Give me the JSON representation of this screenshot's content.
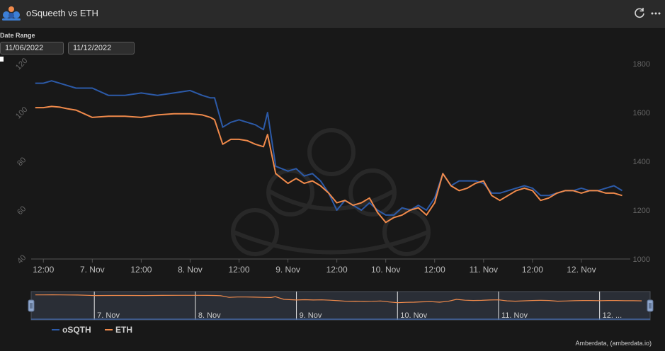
{
  "header": {
    "title": "oSqueeth vs ETH",
    "refresh_icon": "refresh-icon",
    "more_icon": "more-icon"
  },
  "date_range": {
    "label": "Date Range",
    "start": "11/06/2022",
    "end": "11/12/2022"
  },
  "footer": {
    "credit": "Amberdata, (amberdata.io)"
  },
  "colors": {
    "osqth": "#2c5aa8",
    "eth": "#f08a4b",
    "background": "#181818"
  },
  "chart_data": {
    "type": "line",
    "title": "",
    "y_left": {
      "min": 40,
      "max": 120,
      "ticks": [
        40,
        60,
        80,
        100,
        120
      ]
    },
    "y_right": {
      "min": 1000,
      "max": 1800,
      "ticks": [
        1000,
        1200,
        1400,
        1600,
        1800
      ]
    },
    "x_range": [
      "2022-11-06T09:00",
      "2022-11-12T12:00"
    ],
    "x_ticks": [
      {
        "t": "2022-11-06T12:00",
        "label": "12:00"
      },
      {
        "t": "2022-11-07T00:00",
        "label": "7. Nov"
      },
      {
        "t": "2022-11-07T12:00",
        "label": "12:00"
      },
      {
        "t": "2022-11-08T00:00",
        "label": "8. Nov"
      },
      {
        "t": "2022-11-08T12:00",
        "label": "12:00"
      },
      {
        "t": "2022-11-09T00:00",
        "label": "9. Nov"
      },
      {
        "t": "2022-11-09T12:00",
        "label": "12:00"
      },
      {
        "t": "2022-11-10T00:00",
        "label": "10. Nov"
      },
      {
        "t": "2022-11-10T12:00",
        "label": "12:00"
      },
      {
        "t": "2022-11-11T00:00",
        "label": "11. Nov"
      },
      {
        "t": "2022-11-11T12:00",
        "label": "12:00"
      },
      {
        "t": "2022-11-12T00:00",
        "label": "12. Nov"
      }
    ],
    "navigator_ticks": [
      {
        "t": "2022-11-07T00:00",
        "label": "7. Nov"
      },
      {
        "t": "2022-11-08T00:00",
        "label": "8. Nov"
      },
      {
        "t": "2022-11-09T00:00",
        "label": "9. Nov"
      },
      {
        "t": "2022-11-10T00:00",
        "label": "10. Nov"
      },
      {
        "t": "2022-11-11T00:00",
        "label": "11. Nov"
      },
      {
        "t": "2022-11-12T00:00",
        "label": "12. ..."
      }
    ],
    "legend": {
      "position": "bottom-left"
    },
    "series": [
      {
        "name": "oSQTH",
        "axis": "left",
        "x": [
          "2022-11-06T10:00",
          "2022-11-06T12:00",
          "2022-11-06T14:00",
          "2022-11-06T16:00",
          "2022-11-06T18:00",
          "2022-11-06T20:00",
          "2022-11-07T00:00",
          "2022-11-07T04:00",
          "2022-11-07T08:00",
          "2022-11-07T12:00",
          "2022-11-07T16:00",
          "2022-11-07T20:00",
          "2022-11-08T00:00",
          "2022-11-08T03:00",
          "2022-11-08T05:00",
          "2022-11-08T06:00",
          "2022-11-08T08:00",
          "2022-11-08T10:00",
          "2022-11-08T12:00",
          "2022-11-08T14:00",
          "2022-11-08T16:00",
          "2022-11-08T18:00",
          "2022-11-08T19:00",
          "2022-11-08T21:00",
          "2022-11-09T00:00",
          "2022-11-09T02:00",
          "2022-11-09T04:00",
          "2022-11-09T06:00",
          "2022-11-09T08:00",
          "2022-11-09T10:00",
          "2022-11-09T12:00",
          "2022-11-09T14:00",
          "2022-11-09T16:00",
          "2022-11-09T18:00",
          "2022-11-09T20:00",
          "2022-11-09T22:00",
          "2022-11-10T00:00",
          "2022-11-10T02:00",
          "2022-11-10T04:00",
          "2022-11-10T06:00",
          "2022-11-10T08:00",
          "2022-11-10T10:00",
          "2022-11-10T12:00",
          "2022-11-10T14:00",
          "2022-11-10T16:00",
          "2022-11-10T18:00",
          "2022-11-10T20:00",
          "2022-11-10T22:00",
          "2022-11-11T00:00",
          "2022-11-11T02:00",
          "2022-11-11T04:00",
          "2022-11-11T06:00",
          "2022-11-11T08:00",
          "2022-11-11T10:00",
          "2022-11-11T12:00",
          "2022-11-11T14:00",
          "2022-11-11T16:00",
          "2022-11-11T18:00",
          "2022-11-11T20:00",
          "2022-11-11T22:00",
          "2022-11-12T00:00",
          "2022-11-12T02:00",
          "2022-11-12T04:00",
          "2022-11-12T06:00",
          "2022-11-12T08:00",
          "2022-11-12T10:00"
        ],
        "values": [
          112,
          112,
          113,
          112,
          111,
          110,
          110,
          107,
          107,
          108,
          107,
          108,
          109,
          107,
          106,
          106,
          94,
          96,
          97,
          96,
          95,
          93,
          100,
          78,
          76,
          77,
          74,
          75,
          72,
          67,
          60,
          64,
          62,
          60,
          63,
          60,
          58,
          58,
          61,
          60,
          62,
          60,
          65,
          75,
          70,
          72,
          72,
          72,
          71,
          67,
          67,
          68,
          69,
          70,
          69,
          66,
          66,
          67,
          68,
          68,
          69,
          68,
          68,
          69,
          70,
          68
        ]
      },
      {
        "name": "ETH",
        "axis": "right",
        "x": [
          "2022-11-06T10:00",
          "2022-11-06T12:00",
          "2022-11-06T14:00",
          "2022-11-06T16:00",
          "2022-11-06T18:00",
          "2022-11-06T20:00",
          "2022-11-07T00:00",
          "2022-11-07T04:00",
          "2022-11-07T08:00",
          "2022-11-07T12:00",
          "2022-11-07T16:00",
          "2022-11-07T20:00",
          "2022-11-08T00:00",
          "2022-11-08T03:00",
          "2022-11-08T05:00",
          "2022-11-08T06:00",
          "2022-11-08T08:00",
          "2022-11-08T10:00",
          "2022-11-08T12:00",
          "2022-11-08T14:00",
          "2022-11-08T16:00",
          "2022-11-08T18:00",
          "2022-11-08T19:00",
          "2022-11-08T21:00",
          "2022-11-09T00:00",
          "2022-11-09T02:00",
          "2022-11-09T04:00",
          "2022-11-09T06:00",
          "2022-11-09T08:00",
          "2022-11-09T10:00",
          "2022-11-09T12:00",
          "2022-11-09T14:00",
          "2022-11-09T16:00",
          "2022-11-09T18:00",
          "2022-11-09T20:00",
          "2022-11-09T22:00",
          "2022-11-10T00:00",
          "2022-11-10T02:00",
          "2022-11-10T04:00",
          "2022-11-10T06:00",
          "2022-11-10T08:00",
          "2022-11-10T10:00",
          "2022-11-10T12:00",
          "2022-11-10T14:00",
          "2022-11-10T16:00",
          "2022-11-10T18:00",
          "2022-11-10T20:00",
          "2022-11-10T22:00",
          "2022-11-11T00:00",
          "2022-11-11T02:00",
          "2022-11-11T04:00",
          "2022-11-11T06:00",
          "2022-11-11T08:00",
          "2022-11-11T10:00",
          "2022-11-11T12:00",
          "2022-11-11T14:00",
          "2022-11-11T16:00",
          "2022-11-11T18:00",
          "2022-11-11T20:00",
          "2022-11-11T22:00",
          "2022-11-12T00:00",
          "2022-11-12T02:00",
          "2022-11-12T04:00",
          "2022-11-12T06:00",
          "2022-11-12T08:00",
          "2022-11-12T10:00"
        ],
        "values": [
          1620,
          1620,
          1625,
          1622,
          1615,
          1610,
          1580,
          1585,
          1585,
          1580,
          1590,
          1595,
          1595,
          1590,
          1580,
          1570,
          1470,
          1490,
          1490,
          1485,
          1470,
          1460,
          1510,
          1350,
          1310,
          1330,
          1310,
          1320,
          1300,
          1270,
          1230,
          1240,
          1220,
          1230,
          1250,
          1190,
          1150,
          1170,
          1180,
          1200,
          1210,
          1180,
          1230,
          1350,
          1300,
          1280,
          1290,
          1310,
          1320,
          1260,
          1240,
          1260,
          1280,
          1290,
          1280,
          1240,
          1250,
          1270,
          1280,
          1280,
          1270,
          1280,
          1280,
          1270,
          1270,
          1260
        ]
      }
    ]
  }
}
